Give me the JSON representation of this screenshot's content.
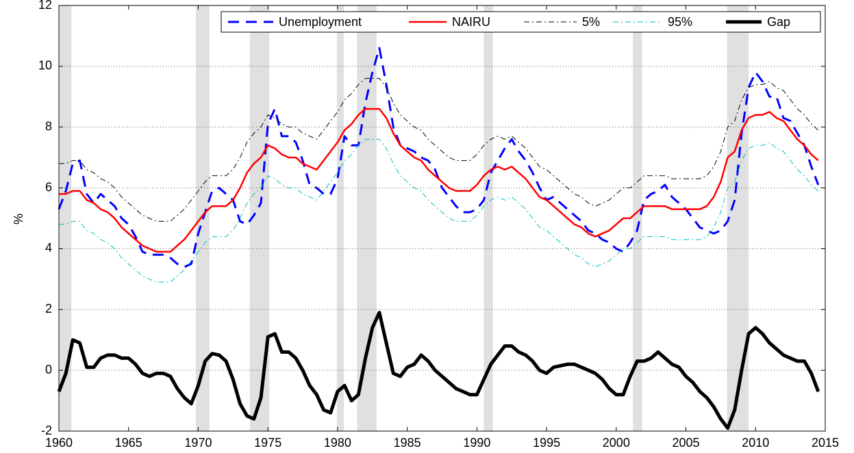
{
  "chart_data": {
    "type": "line",
    "ylabel": "%",
    "xlim": [
      1960,
      2015
    ],
    "xticks": [
      1960,
      1965,
      1970,
      1975,
      1980,
      1985,
      1990,
      1995,
      2000,
      2005,
      2010,
      2015
    ],
    "ylim": [
      -2,
      12
    ],
    "yticks": [
      -2,
      0,
      2,
      4,
      6,
      8,
      10,
      12
    ],
    "grid": true,
    "legend": "top",
    "shaded_periods": [
      [
        1960.05,
        1960.9
      ],
      [
        1969.83,
        1970.81
      ],
      [
        1973.7,
        1975.1
      ],
      [
        1979.95,
        1980.45
      ],
      [
        1981.4,
        1982.8
      ],
      [
        1990.5,
        1991.15
      ],
      [
        2001.2,
        2001.85
      ],
      [
        2007.95,
        2009.5
      ]
    ],
    "shade_color": "#e0e0e0",
    "x": [
      1960,
      1960.5,
      1961,
      1961.5,
      1962,
      1962.5,
      1963,
      1963.5,
      1964,
      1964.5,
      1965,
      1965.5,
      1966,
      1966.5,
      1967,
      1967.5,
      1968,
      1968.5,
      1969,
      1969.5,
      1970,
      1970.5,
      1971,
      1971.5,
      1972,
      1972.5,
      1973,
      1973.5,
      1974,
      1974.5,
      1975,
      1975.5,
      1976,
      1976.5,
      1977,
      1977.5,
      1978,
      1978.5,
      1979,
      1979.5,
      1980,
      1980.5,
      1981,
      1981.5,
      1982,
      1982.5,
      1983,
      1983.5,
      1984,
      1984.5,
      1985,
      1985.5,
      1986,
      1986.5,
      1987,
      1987.5,
      1988,
      1988.5,
      1989,
      1989.5,
      1990,
      1990.5,
      1991,
      1991.5,
      1992,
      1992.5,
      1993,
      1993.5,
      1994,
      1994.5,
      1995,
      1995.5,
      1996,
      1996.5,
      1997,
      1997.5,
      1998,
      1998.5,
      1999,
      1999.5,
      2000,
      2000.5,
      2001,
      2001.5,
      2002,
      2002.5,
      2003,
      2003.5,
      2004,
      2004.5,
      2005,
      2005.5,
      2006,
      2006.5,
      2007,
      2007.5,
      2008,
      2008.5,
      2009,
      2009.5,
      2010,
      2010.5,
      2011,
      2011.5,
      2012,
      2012.5,
      2013,
      2013.5,
      2014,
      2014.5
    ],
    "series": [
      {
        "name": "Unemployment",
        "color": "#0000ff",
        "width": 3,
        "dash": "16 10",
        "values": [
          5.3,
          5.9,
          6.8,
          6.9,
          5.8,
          5.5,
          5.8,
          5.6,
          5.4,
          5.0,
          4.8,
          4.4,
          3.9,
          3.8,
          3.8,
          3.8,
          3.7,
          3.5,
          3.4,
          3.5,
          4.5,
          5.2,
          5.9,
          6.0,
          5.8,
          5.6,
          4.9,
          4.8,
          5.1,
          5.5,
          8.1,
          8.6,
          7.7,
          7.7,
          7.5,
          6.9,
          6.1,
          6.0,
          5.8,
          5.8,
          6.3,
          7.7,
          7.4,
          7.4,
          8.8,
          9.8,
          10.6,
          9.4,
          8.0,
          7.4,
          7.3,
          7.2,
          7.0,
          6.9,
          6.6,
          6.0,
          5.7,
          5.4,
          5.2,
          5.2,
          5.3,
          5.6,
          6.5,
          6.9,
          7.3,
          7.6,
          7.2,
          6.9,
          6.5,
          6.0,
          5.6,
          5.7,
          5.5,
          5.3,
          5.1,
          4.9,
          4.6,
          4.5,
          4.3,
          4.2,
          4.0,
          3.9,
          4.2,
          4.6,
          5.6,
          5.8,
          5.9,
          6.1,
          5.7,
          5.5,
          5.3,
          5.0,
          4.7,
          4.6,
          4.5,
          4.6,
          4.9,
          5.6,
          7.8,
          9.3,
          9.8,
          9.5,
          9.0,
          9.0,
          8.3,
          8.2,
          7.8,
          7.4,
          6.7,
          6.1
        ]
      },
      {
        "name": "NAIRU",
        "color": "#ff0000",
        "width": 2.5,
        "dash": "none",
        "values": [
          5.8,
          5.8,
          5.9,
          5.9,
          5.6,
          5.5,
          5.3,
          5.2,
          5.0,
          4.7,
          4.5,
          4.3,
          4.1,
          4.0,
          3.9,
          3.9,
          3.9,
          4.1,
          4.3,
          4.6,
          4.9,
          5.2,
          5.4,
          5.4,
          5.4,
          5.6,
          6.0,
          6.5,
          6.8,
          7.0,
          7.4,
          7.3,
          7.1,
          7.0,
          7.0,
          6.8,
          6.7,
          6.6,
          6.9,
          7.2,
          7.5,
          7.9,
          8.1,
          8.4,
          8.6,
          8.6,
          8.6,
          8.3,
          7.8,
          7.4,
          7.2,
          7.0,
          6.9,
          6.6,
          6.4,
          6.2,
          6.0,
          5.9,
          5.9,
          5.9,
          6.1,
          6.4,
          6.6,
          6.7,
          6.6,
          6.7,
          6.5,
          6.3,
          6.0,
          5.7,
          5.6,
          5.4,
          5.2,
          5.0,
          4.8,
          4.7,
          4.5,
          4.4,
          4.5,
          4.6,
          4.8,
          5.0,
          5.0,
          5.2,
          5.4,
          5.4,
          5.4,
          5.4,
          5.3,
          5.3,
          5.3,
          5.3,
          5.3,
          5.4,
          5.7,
          6.2,
          7.0,
          7.2,
          7.9,
          8.3,
          8.4,
          8.4,
          8.5,
          8.3,
          8.2,
          7.9,
          7.6,
          7.4,
          7.1,
          6.9
        ]
      },
      {
        "name": "5%",
        "color": "#000000",
        "width": 1,
        "dash": "8 4 2 4",
        "values": [
          6.8,
          6.8,
          6.9,
          6.9,
          6.6,
          6.5,
          6.3,
          6.2,
          6.0,
          5.7,
          5.5,
          5.3,
          5.1,
          5.0,
          4.9,
          4.9,
          4.9,
          5.1,
          5.3,
          5.6,
          5.9,
          6.2,
          6.4,
          6.4,
          6.4,
          6.6,
          7.0,
          7.5,
          7.8,
          8.0,
          8.4,
          8.3,
          8.1,
          8.0,
          8.0,
          7.8,
          7.7,
          7.6,
          7.9,
          8.2,
          8.5,
          8.9,
          9.1,
          9.4,
          9.6,
          9.6,
          9.6,
          9.3,
          8.8,
          8.4,
          8.2,
          8.0,
          7.9,
          7.6,
          7.4,
          7.2,
          7.0,
          6.9,
          6.9,
          6.9,
          7.1,
          7.4,
          7.6,
          7.7,
          7.6,
          7.7,
          7.5,
          7.3,
          7.0,
          6.7,
          6.6,
          6.4,
          6.2,
          6.0,
          5.8,
          5.7,
          5.5,
          5.4,
          5.5,
          5.6,
          5.8,
          6.0,
          6.0,
          6.2,
          6.4,
          6.4,
          6.4,
          6.4,
          6.3,
          6.3,
          6.3,
          6.3,
          6.3,
          6.4,
          6.7,
          7.2,
          8.0,
          8.2,
          8.9,
          9.3,
          9.4,
          9.4,
          9.5,
          9.3,
          9.2,
          8.9,
          8.6,
          8.4,
          8.1,
          7.9
        ]
      },
      {
        "name": "95%",
        "color": "#00bfbf",
        "width": 1,
        "dash": "8 4 2 4",
        "values": [
          4.8,
          4.8,
          4.9,
          4.9,
          4.6,
          4.5,
          4.3,
          4.2,
          4.0,
          3.7,
          3.5,
          3.3,
          3.1,
          3.0,
          2.9,
          2.9,
          2.9,
          3.1,
          3.3,
          3.6,
          3.9,
          4.2,
          4.4,
          4.4,
          4.4,
          4.6,
          5.0,
          5.5,
          5.8,
          6.0,
          6.4,
          6.3,
          6.1,
          6.0,
          6.0,
          5.8,
          5.7,
          5.6,
          5.9,
          6.2,
          6.5,
          6.9,
          7.1,
          7.4,
          7.6,
          7.6,
          7.6,
          7.3,
          6.8,
          6.4,
          6.2,
          6.0,
          5.9,
          5.6,
          5.4,
          5.2,
          5.0,
          4.9,
          4.9,
          4.9,
          5.1,
          5.4,
          5.6,
          5.7,
          5.6,
          5.7,
          5.5,
          5.3,
          5.0,
          4.7,
          4.6,
          4.4,
          4.2,
          4.0,
          3.8,
          3.7,
          3.5,
          3.4,
          3.5,
          3.6,
          3.8,
          4.0,
          4.0,
          4.2,
          4.4,
          4.4,
          4.4,
          4.4,
          4.3,
          4.3,
          4.3,
          4.3,
          4.3,
          4.4,
          4.7,
          5.2,
          6.0,
          6.2,
          6.9,
          7.3,
          7.4,
          7.4,
          7.5,
          7.3,
          7.2,
          6.9,
          6.6,
          6.4,
          6.1,
          5.9
        ]
      },
      {
        "name": "Gap",
        "color": "#000000",
        "width": 5,
        "dash": "none",
        "values": [
          -0.7,
          -0.1,
          1.0,
          0.9,
          0.1,
          0.1,
          0.4,
          0.5,
          0.5,
          0.4,
          0.4,
          0.2,
          -0.1,
          -0.2,
          -0.1,
          -0.1,
          -0.2,
          -0.6,
          -0.9,
          -1.1,
          -0.5,
          0.3,
          0.55,
          0.5,
          0.3,
          -0.3,
          -1.1,
          -1.5,
          -1.6,
          -0.9,
          1.1,
          1.2,
          0.6,
          0.6,
          0.4,
          0.0,
          -0.5,
          -0.8,
          -1.3,
          -1.4,
          -0.7,
          -0.5,
          -1.0,
          -0.8,
          0.4,
          1.4,
          1.9,
          0.9,
          -0.1,
          -0.2,
          0.1,
          0.2,
          0.5,
          0.3,
          0.0,
          -0.2,
          -0.4,
          -0.6,
          -0.7,
          -0.8,
          -0.8,
          -0.3,
          0.2,
          0.5,
          0.8,
          0.8,
          0.6,
          0.5,
          0.3,
          0.0,
          -0.1,
          0.1,
          0.15,
          0.2,
          0.2,
          0.1,
          0.0,
          -0.1,
          -0.3,
          -0.6,
          -0.8,
          -0.8,
          -0.2,
          0.3,
          0.3,
          0.4,
          0.6,
          0.4,
          0.2,
          0.1,
          -0.2,
          -0.4,
          -0.7,
          -0.9,
          -1.2,
          -1.6,
          -1.9,
          -1.3,
          0.0,
          1.2,
          1.4,
          1.2,
          0.9,
          0.7,
          0.5,
          0.4,
          0.3,
          0.3,
          -0.1,
          -0.7
        ]
      }
    ]
  }
}
